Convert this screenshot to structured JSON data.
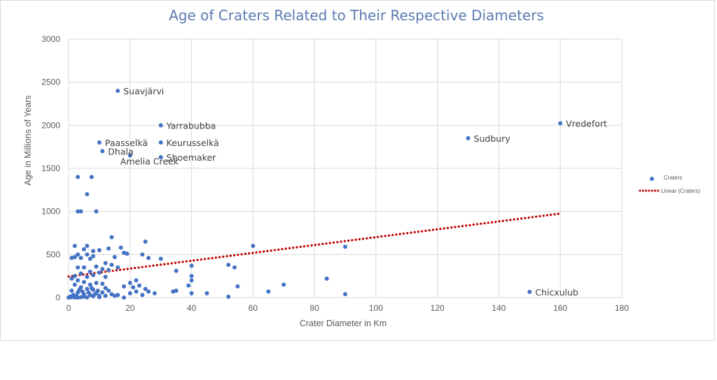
{
  "chart_data": {
    "type": "scatter",
    "title": "Age of Craters Related to Their Respective Diameters",
    "xlabel": "Crater Diameter in Km",
    "ylabel": "Age in Millions of Years",
    "xlim": [
      0,
      180
    ],
    "ylim": [
      0,
      3000
    ],
    "xticks": [
      "0",
      "20",
      "40",
      "60",
      "80",
      "100",
      "120",
      "140",
      "160",
      "180"
    ],
    "yticks": [
      "0",
      "500",
      "1000",
      "1500",
      "2000",
      "2500",
      "3000"
    ],
    "grid": true,
    "legend_position": "right",
    "series": [
      {
        "name": "Craters",
        "color": "#4472c4",
        "points": [
          [
            16,
            2400
          ],
          [
            30,
            2000
          ],
          [
            10,
            1800
          ],
          [
            30,
            1800
          ],
          [
            11,
            1700
          ],
          [
            20,
            1650
          ],
          [
            30,
            1630
          ],
          [
            130,
            1850
          ],
          [
            160,
            2023
          ],
          [
            150,
            66
          ],
          [
            3,
            1400
          ],
          [
            7.5,
            1400
          ],
          [
            6,
            1200
          ],
          [
            3,
            1000
          ],
          [
            4,
            1000
          ],
          [
            9,
            1000
          ],
          [
            14,
            700
          ],
          [
            25,
            650
          ],
          [
            60,
            600
          ],
          [
            90,
            590
          ],
          [
            2,
            600
          ],
          [
            6,
            600
          ],
          [
            17,
            580
          ],
          [
            13,
            570
          ],
          [
            5,
            560
          ],
          [
            8,
            540
          ],
          [
            10,
            550
          ],
          [
            18,
            520
          ],
          [
            19,
            510
          ],
          [
            6,
            500
          ],
          [
            8,
            480
          ],
          [
            3,
            500
          ],
          [
            4,
            460
          ],
          [
            1,
            460
          ],
          [
            2,
            470
          ],
          [
            7,
            450
          ],
          [
            15,
            470
          ],
          [
            24,
            500
          ],
          [
            26,
            460
          ],
          [
            30,
            450
          ],
          [
            40,
            370
          ],
          [
            12,
            400
          ],
          [
            14,
            380
          ],
          [
            9,
            360
          ],
          [
            5,
            350
          ],
          [
            3,
            350
          ],
          [
            11,
            330
          ],
          [
            13,
            320
          ],
          [
            16,
            350
          ],
          [
            35,
            310
          ],
          [
            52,
            380
          ],
          [
            54,
            350
          ],
          [
            7,
            300
          ],
          [
            10,
            290
          ],
          [
            4,
            280
          ],
          [
            8,
            260
          ],
          [
            6,
            240
          ],
          [
            2,
            250
          ],
          [
            1,
            220
          ],
          [
            12,
            240
          ],
          [
            40,
            250
          ],
          [
            40,
            200
          ],
          [
            22,
            200
          ],
          [
            3,
            200
          ],
          [
            5,
            180
          ],
          [
            9,
            170
          ],
          [
            11,
            160
          ],
          [
            7,
            150
          ],
          [
            20,
            170
          ],
          [
            84,
            220
          ],
          [
            70,
            150
          ],
          [
            55,
            130
          ],
          [
            65,
            70
          ],
          [
            45,
            50
          ],
          [
            90,
            40
          ],
          [
            52,
            10
          ],
          [
            2,
            150
          ],
          [
            4,
            120
          ],
          [
            6,
            100
          ],
          [
            8,
            90
          ],
          [
            12,
            110
          ],
          [
            13,
            80
          ],
          [
            18,
            130
          ],
          [
            21,
            120
          ],
          [
            23,
            140
          ],
          [
            25,
            100
          ],
          [
            26,
            70
          ],
          [
            28,
            50
          ],
          [
            35,
            80
          ],
          [
            34,
            70
          ],
          [
            39,
            140
          ],
          [
            40,
            50
          ],
          [
            1,
            80
          ],
          [
            3,
            60
          ],
          [
            5,
            40
          ],
          [
            7,
            30
          ],
          [
            9,
            50
          ],
          [
            10,
            20
          ],
          [
            11,
            60
          ],
          [
            14,
            40
          ],
          [
            16,
            30
          ],
          [
            20,
            50
          ],
          [
            22,
            70
          ],
          [
            24,
            30
          ],
          [
            0.5,
            10
          ],
          [
            1,
            5
          ],
          [
            2,
            2
          ],
          [
            3,
            0
          ],
          [
            4,
            5
          ],
          [
            5,
            10
          ],
          [
            6,
            2
          ],
          [
            8,
            15
          ],
          [
            10,
            5
          ],
          [
            15,
            20
          ],
          [
            18,
            0
          ],
          [
            0,
            0
          ],
          [
            0.3,
            3
          ],
          [
            1.5,
            30
          ],
          [
            2.5,
            20
          ],
          [
            3.5,
            90
          ],
          [
            4.5,
            70
          ],
          [
            6.5,
            60
          ],
          [
            7.5,
            110
          ],
          [
            8.5,
            40
          ],
          [
            9.5,
            80
          ],
          [
            12,
            20
          ]
        ]
      },
      {
        "name": "Linear (Craters)",
        "color": "#c00000",
        "style": "dotted",
        "trendline": {
          "x_start": 0,
          "y_start": 245,
          "x_end": 160,
          "y_end": 975
        }
      }
    ],
    "annotations": [
      {
        "x": 16,
        "y": 2400,
        "text": "Suavjärvi"
      },
      {
        "x": 30,
        "y": 2000,
        "text": "Yarrabubba"
      },
      {
        "x": 10,
        "y": 1800,
        "text": "Paasselkä"
      },
      {
        "x": 30,
        "y": 1800,
        "text": "Keurusselkä"
      },
      {
        "x": 11,
        "y": 1700,
        "text": "Dhala"
      },
      {
        "x": 30,
        "y": 1630,
        "text": "Shoemaker"
      },
      {
        "x": 20,
        "y": 1650,
        "text": "Amelia Creek"
      },
      {
        "x": 130,
        "y": 1850,
        "text": "Sudbury"
      },
      {
        "x": 160,
        "y": 2023,
        "text": "Vredefort"
      },
      {
        "x": 150,
        "y": 66,
        "text": "Chicxulub"
      }
    ]
  }
}
